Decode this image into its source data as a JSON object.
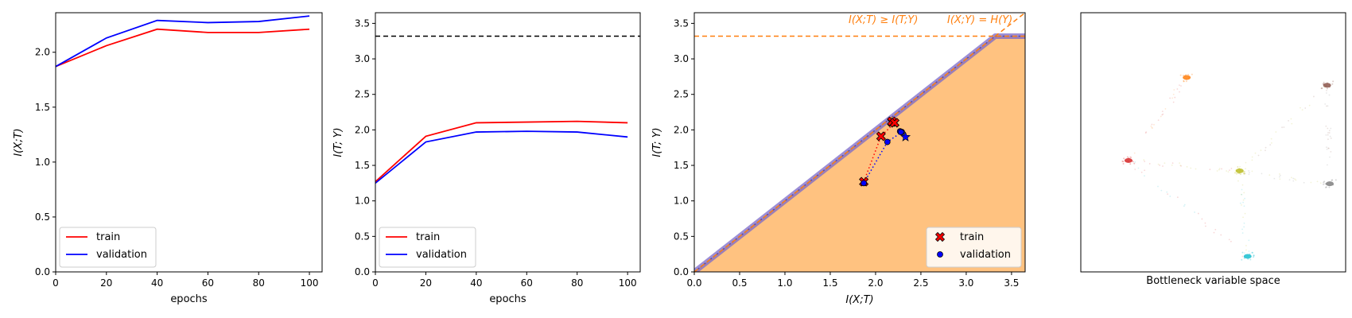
{
  "chart_data": [
    {
      "type": "line",
      "xlabel": "epochs",
      "ylabel": "I(X;T)",
      "xlim": [
        0,
        105
      ],
      "ylim": [
        0,
        2.36
      ],
      "x_ticks": [
        0,
        20,
        40,
        60,
        80,
        100
      ],
      "y_ticks": [
        0.0,
        0.5,
        1.0,
        1.5,
        2.0
      ],
      "x": [
        0,
        20,
        40,
        60,
        80,
        100
      ],
      "series": [
        {
          "name": "train",
          "color": "#ff0000",
          "values": [
            1.87,
            2.06,
            2.21,
            2.18,
            2.18,
            2.21
          ]
        },
        {
          "name": "validation",
          "color": "#0000ff",
          "values": [
            1.87,
            2.13,
            2.29,
            2.27,
            2.28,
            2.33
          ]
        }
      ],
      "legend": "lower-left",
      "grid": false
    },
    {
      "type": "line",
      "xlabel": "epochs",
      "ylabel": "I(T; Y)",
      "xlim": [
        0,
        105
      ],
      "ylim": [
        0,
        3.65
      ],
      "x_ticks": [
        0,
        20,
        40,
        60,
        80,
        100
      ],
      "y_ticks": [
        0.0,
        0.5,
        1.0,
        1.5,
        2.0,
        2.5,
        3.0,
        3.5
      ],
      "x": [
        0,
        20,
        40,
        60,
        80,
        100
      ],
      "series": [
        {
          "name": "train",
          "color": "#ff0000",
          "values": [
            1.27,
            1.91,
            2.1,
            2.11,
            2.12,
            2.1
          ]
        },
        {
          "name": "validation",
          "color": "#0000ff",
          "values": [
            1.25,
            1.83,
            1.97,
            1.98,
            1.97,
            1.9
          ]
        }
      ],
      "reference_line": {
        "y": 3.32,
        "color": "#000000",
        "style": "dashed"
      },
      "legend": "lower-left",
      "grid": false
    },
    {
      "type": "scatter",
      "xlabel": "I(X;T)",
      "ylabel": "I(T; Y)",
      "xlim": [
        0,
        3.65
      ],
      "ylim": [
        0,
        3.65
      ],
      "x_ticks": [
        0.0,
        0.5,
        1.0,
        1.5,
        2.0,
        2.5,
        3.0,
        3.5
      ],
      "y_ticks": [
        0.0,
        0.5,
        1.0,
        1.5,
        2.0,
        2.5,
        3.0,
        3.5
      ],
      "HY": 3.32,
      "region_color": "#ffc280",
      "bound_color": "#7b68c8",
      "reference_color": "#ff7f0e",
      "annotations": [
        "I(X;T) ≥ I(T;Y)",
        "I(X;Y) = H(Y)"
      ],
      "series": [
        {
          "name": "train",
          "marker": "x",
          "color": "#ff0000",
          "x": [
            1.87,
            2.06,
            2.21,
            2.18,
            2.18,
            2.21
          ],
          "y": [
            1.27,
            1.91,
            2.1,
            2.11,
            2.12,
            2.1
          ]
        },
        {
          "name": "validation",
          "marker": "o",
          "color": "#0000ff",
          "x": [
            1.87,
            2.13,
            2.29,
            2.27,
            2.28,
            2.33
          ],
          "y": [
            1.25,
            1.83,
            1.97,
            1.98,
            1.97,
            1.9
          ]
        }
      ],
      "legend": "lower-right",
      "grid": false
    },
    {
      "type": "scatter",
      "xlabel": "Bottleneck variable space",
      "ylabel": "",
      "x_ticks": [],
      "y_ticks": [],
      "clusters": [
        {
          "x": 0.4,
          "y": 0.75,
          "color": "#ff7f0e"
        },
        {
          "x": 0.93,
          "y": 0.72,
          "color": "#8c564b"
        },
        {
          "x": 0.18,
          "y": 0.43,
          "color": "#d62728"
        },
        {
          "x": 0.6,
          "y": 0.39,
          "color": "#bcbd22"
        },
        {
          "x": 0.94,
          "y": 0.34,
          "color": "#7f7f7f"
        },
        {
          "x": 0.63,
          "y": 0.06,
          "color": "#17becf"
        }
      ]
    }
  ]
}
